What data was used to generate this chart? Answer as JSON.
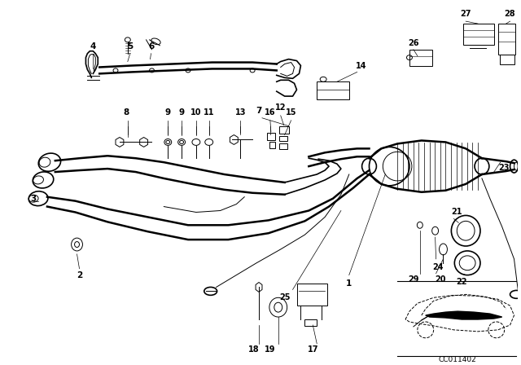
{
  "bg_color": "#ffffff",
  "fig_width": 6.4,
  "fig_height": 4.48,
  "dpi": 100,
  "diagram_code": "CC011402",
  "border_color": "#000000",
  "line_color": "#000000",
  "label_fontsize": 7.5,
  "code_fontsize": 6.5
}
